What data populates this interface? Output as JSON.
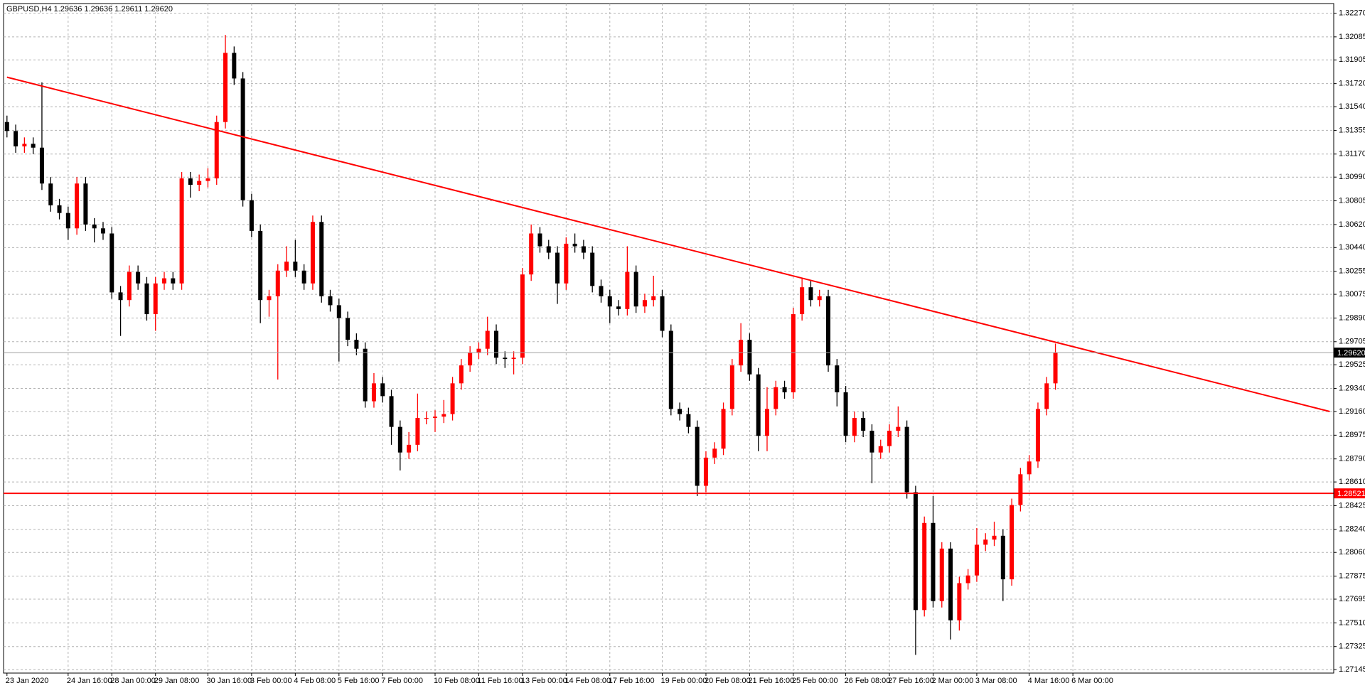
{
  "chart_data": {
    "type": "candlestick",
    "title": "GBPUSD,H4 1.29636 1.29636 1.29611 1.29620",
    "up_color": "#ff0000",
    "down_color": "#000000",
    "grid": true,
    "categories": [
      "23 Jan 2020",
      null,
      null,
      null,
      null,
      null,
      null,
      "24 Jan 16:00",
      null,
      null,
      null,
      null,
      "28 Jan 00:00",
      null,
      null,
      null,
      null,
      "29 Jan 08:00",
      null,
      null,
      null,
      null,
      null,
      "30 Jan 16:00",
      null,
      null,
      null,
      null,
      "3 Feb 00:00",
      null,
      null,
      null,
      null,
      "4 Feb 08:00",
      null,
      null,
      null,
      null,
      "5 Feb 16:00",
      null,
      null,
      null,
      null,
      "7 Feb 00:00",
      null,
      null,
      null,
      null,
      null,
      "10 Feb 08:00",
      null,
      null,
      null,
      null,
      "11 Feb 16:00",
      null,
      null,
      null,
      null,
      "13 Feb 00:00",
      null,
      null,
      null,
      null,
      "14 Feb 08:00",
      null,
      null,
      null,
      null,
      "17 Feb 16:00",
      null,
      null,
      null,
      null,
      null,
      "19 Feb 00:00",
      null,
      null,
      null,
      null,
      "20 Feb 08:00",
      null,
      null,
      null,
      null,
      "21 Feb 16:00",
      null,
      null,
      null,
      null,
      "25 Feb 00:00",
      null,
      null,
      null,
      null,
      null,
      "26 Feb 08:00",
      null,
      null,
      null,
      null,
      "27 Feb 16:00",
      null,
      null,
      null,
      null,
      "2 Mar 00:00",
      null,
      null,
      null,
      null,
      "3 Mar 08:00",
      null,
      null,
      null,
      null,
      null,
      "4 Mar 16:00",
      null,
      null,
      null,
      null,
      "6 Mar 00:00"
    ],
    "open": [
      1.3142,
      1.3135,
      1.3123,
      1.3125,
      1.3122,
      1.3094,
      1.3077,
      1.3071,
      1.3059,
      1.3094,
      1.3062,
      1.3059,
      1.3055,
      1.3009,
      1.3003,
      1.3025,
      1.3016,
      1.2992,
      1.3016,
      1.302,
      1.3016,
      1.3098,
      1.3093,
      1.3096,
      1.3098,
      1.3142,
      1.3196,
      1.3176,
      1.3081,
      1.3057,
      1.3003,
      1.3006,
      1.3026,
      1.3033,
      1.3026,
      1.3016,
      1.3064,
      1.3006,
      1.2999,
      1.2989,
      1.2972,
      1.2965,
      1.2924,
      1.2938,
      1.2928,
      1.2904,
      1.2884,
      1.289,
      1.2911,
      1.2911,
      1.2912,
      1.2914,
      1.2938,
      1.2952,
      1.2962,
      1.2965,
      1.2979,
      1.2958,
      1.2957,
      1.2958,
      1.3023,
      1.3055,
      1.3045,
      1.304,
      1.3016,
      1.3047,
      1.3045,
      1.304,
      1.3014,
      1.3006,
      1.2998,
      1.2996,
      1.3025,
      1.2998,
      1.3003,
      1.3006,
      1.2979,
      1.2918,
      1.2914,
      1.2904,
      1.2858,
      1.288,
      1.2887,
      1.2918,
      1.2952,
      1.2972,
      1.2945,
      1.2897,
      1.2918,
      1.2935,
      1.2931,
      1.2992,
      1.3013,
      1.3003,
      1.3006,
      1.2952,
      1.2931,
      1.2897,
      1.2911,
      1.2901,
      1.2884,
      1.2889,
      1.2901,
      1.2904,
      1.2853,
      1.2761,
      1.2829,
      1.2768,
      1.2809,
      1.2753,
      1.2782,
      1.2788,
      1.2812,
      1.2816,
      1.2819,
      1.2785,
      1.2843,
      1.2867,
      1.2877,
      1.2918,
      1.2938,
      null,
      null
    ],
    "high": [
      1.3147,
      1.314,
      1.313,
      1.313,
      1.3173,
      1.3099,
      1.3082,
      1.3076,
      1.3099,
      1.3099,
      1.3067,
      1.3064,
      1.306,
      1.3014,
      1.303,
      1.303,
      1.3021,
      1.3021,
      1.3025,
      1.3025,
      1.3103,
      1.3103,
      1.3101,
      1.3106,
      1.3147,
      1.321,
      1.3201,
      1.3181,
      1.3086,
      1.3062,
      1.3011,
      1.3031,
      1.3045,
      1.305,
      1.3031,
      1.3069,
      1.3069,
      1.3011,
      1.3004,
      1.2994,
      1.2977,
      1.297,
      1.2946,
      1.2943,
      1.2933,
      1.2909,
      1.29,
      1.293,
      1.2916,
      1.2917,
      1.2925,
      1.2943,
      1.2957,
      1.2967,
      1.297,
      1.299,
      1.2984,
      1.2963,
      1.2963,
      1.3028,
      1.3062,
      1.306,
      1.305,
      1.3045,
      1.3052,
      1.3055,
      1.305,
      1.3045,
      1.3019,
      1.3011,
      1.3003,
      1.3045,
      1.303,
      1.3008,
      1.3022,
      1.3011,
      1.2984,
      1.2923,
      1.2919,
      1.2909,
      1.2885,
      1.2892,
      1.2923,
      1.2957,
      1.2985,
      1.2977,
      1.295,
      1.2935,
      1.294,
      1.294,
      1.2997,
      1.302,
      1.3018,
      1.3011,
      1.3011,
      1.2957,
      1.2936,
      1.2916,
      1.2916,
      1.2906,
      1.2894,
      1.2906,
      1.292,
      1.2909,
      1.2858,
      1.2834,
      1.285,
      1.2814,
      1.2814,
      1.2787,
      1.2793,
      1.2825,
      1.2821,
      1.283,
      1.2824,
      1.2848,
      1.2872,
      1.2882,
      1.2923,
      1.2943,
      1.2969,
      null,
      null
    ],
    "low": [
      1.313,
      1.3118,
      1.3118,
      1.3117,
      1.3089,
      1.3072,
      1.3066,
      1.305,
      1.3054,
      1.3057,
      1.3048,
      1.305,
      1.3004,
      1.2975,
      1.2998,
      1.3011,
      1.2987,
      1.2979,
      1.3011,
      1.3011,
      1.3011,
      1.3083,
      1.3088,
      1.3091,
      1.3093,
      1.3137,
      1.3171,
      1.3076,
      1.3052,
      1.2985,
      1.299,
      1.2941,
      1.3021,
      1.3021,
      1.3011,
      1.3011,
      1.3001,
      1.2994,
      1.2955,
      1.2967,
      1.296,
      1.2919,
      1.2919,
      1.2923,
      1.289,
      1.287,
      1.2879,
      1.2885,
      1.2906,
      1.29,
      1.2907,
      1.2909,
      1.2933,
      1.2947,
      1.2957,
      1.296,
      1.2953,
      1.295,
      1.2945,
      1.2953,
      1.3018,
      1.304,
      1.3035,
      1.3,
      1.3011,
      1.304,
      1.3035,
      1.3009,
      1.3001,
      1.2985,
      1.2991,
      1.2991,
      1.2993,
      1.2993,
      1.2998,
      1.2974,
      1.2913,
      1.2909,
      1.2899,
      1.285,
      1.2853,
      1.2875,
      1.2882,
      1.2913,
      1.2947,
      1.294,
      1.2885,
      1.2885,
      1.2913,
      1.2926,
      1.2926,
      1.2987,
      1.2998,
      1.2998,
      1.2947,
      1.292,
      1.2892,
      1.2892,
      1.2896,
      1.286,
      1.2879,
      1.2884,
      1.2896,
      1.2848,
      1.2726,
      1.2756,
      1.2763,
      1.2763,
      1.2738,
      1.2745,
      1.2777,
      1.2783,
      1.2807,
      1.2811,
      1.2768,
      1.278,
      1.2838,
      1.2862,
      1.2872,
      1.2913,
      1.2933,
      null,
      null
    ],
    "close": [
      1.3135,
      1.3123,
      1.3125,
      1.3122,
      1.3094,
      1.3077,
      1.3071,
      1.3059,
      1.3094,
      1.3062,
      1.3059,
      1.3055,
      1.3009,
      1.3003,
      1.3025,
      1.3016,
      1.2992,
      1.3016,
      1.302,
      1.3016,
      1.3098,
      1.3093,
      1.3096,
      1.3098,
      1.3142,
      1.3196,
      1.3176,
      1.3081,
      1.3057,
      1.3003,
      1.3006,
      1.3026,
      1.3033,
      1.3026,
      1.3016,
      1.3064,
      1.3006,
      1.2999,
      1.2989,
      1.2972,
      1.2965,
      1.2924,
      1.2938,
      1.2928,
      1.2904,
      1.2884,
      1.289,
      1.2911,
      1.2911,
      1.2912,
      1.2914,
      1.2938,
      1.2952,
      1.2962,
      1.2965,
      1.2979,
      1.2958,
      1.2957,
      1.2958,
      1.3023,
      1.3055,
      1.3045,
      1.304,
      1.3016,
      1.3047,
      1.3045,
      1.304,
      1.3014,
      1.3006,
      1.2998,
      1.2996,
      1.3025,
      1.2998,
      1.3003,
      1.3006,
      1.2979,
      1.2918,
      1.2914,
      1.2904,
      1.2858,
      1.288,
      1.2887,
      1.2918,
      1.2952,
      1.2972,
      1.2945,
      1.2897,
      1.2918,
      1.2935,
      1.2931,
      1.2992,
      1.3013,
      1.3003,
      1.3006,
      1.2952,
      1.2931,
      1.2897,
      1.2911,
      1.2901,
      1.2884,
      1.2889,
      1.2901,
      1.2904,
      1.2853,
      1.2761,
      1.2829,
      1.2768,
      1.2809,
      1.2753,
      1.2782,
      1.2788,
      1.2812,
      1.2816,
      1.2819,
      1.2785,
      1.2843,
      1.2867,
      1.2877,
      1.2918,
      1.2938,
      1.2962,
      null,
      null
    ],
    "ylim": [
      1.27118,
      1.32345
    ],
    "yticks": [
      {
        "value": 1.3227,
        "label": "1.32270"
      },
      1.32085,
      1.31905,
      {
        "value": 1.3172,
        "label": "1.31720"
      },
      {
        "value": 1.3154,
        "label": "1.31540"
      },
      1.31355,
      {
        "value": 1.3117,
        "label": "1.31170"
      },
      {
        "value": 1.3099,
        "label": "1.30990"
      },
      1.30805,
      {
        "value": 1.3062,
        "label": "1.30620"
      },
      {
        "value": 1.3044,
        "label": "1.30440"
      },
      1.30255,
      1.30075,
      {
        "value": 1.2989,
        "label": "1.29890"
      },
      1.29705,
      1.29525,
      {
        "value": 1.2934,
        "label": "1.29340"
      },
      {
        "value": 1.2916,
        "label": "1.29160"
      },
      1.28975,
      {
        "value": 1.2879,
        "label": "1.28790"
      },
      {
        "value": 1.2861,
        "label": "1.28610"
      },
      1.28425,
      {
        "value": 1.2824,
        "label": "1.28240"
      },
      {
        "value": 1.2806,
        "label": "1.28060"
      },
      1.27875,
      1.27695,
      {
        "value": 1.2751,
        "label": "1.27510"
      },
      1.27325,
      1.27145
    ],
    "trendlines": [
      {
        "color": "#ff0000",
        "x": [
          0,
          151.4
        ],
        "y": [
          1.3177,
          1.2916
        ]
      }
    ],
    "hlines": [
      {
        "value": 1.28521,
        "color": "#ff0000"
      }
    ],
    "current_price": {
      "value": 1.2962,
      "label": "1.29620",
      "color": "#000000"
    }
  }
}
